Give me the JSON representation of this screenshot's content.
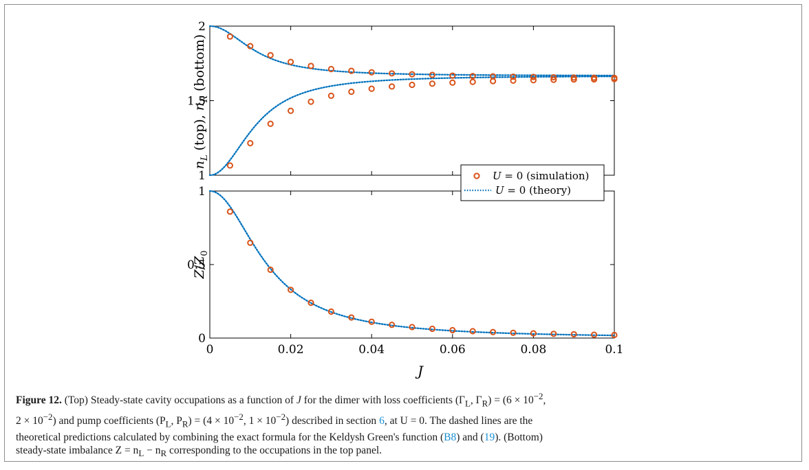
{
  "figure": {
    "number": "Figure 12.",
    "caption": {
      "p1": "(Top) Steady-state cavity occupations as a function of ",
      "var_J": "J",
      "p2": " for the dimer with loss coefficients (Γ",
      "sub_L": "L",
      "comma_gamma": ", Γ",
      "sub_R": "R",
      "p3": ") = (6 × 10",
      "exp_m2": "−2",
      "p4": ",",
      "p5": "2 × 10",
      "p6": ") and pump coefficients (P",
      "p7": ", P",
      "p8": ") = (4 × 10",
      "p9": ", 1 × 10",
      "p10": ") described in section ",
      "ref_section": "6",
      "p11": ", at U = 0. The dashed lines are the",
      "p12": "theoretical predictions calculated by combining the exact formula for the Keldysh Green's function (",
      "ref_b8": "B8",
      "p13": ") and (",
      "ref_19": "19",
      "p14": "). (Bottom)",
      "p15": "steady-state imbalance Z = n",
      "p16": " − n",
      "p17": " corresponding to the occupations in the top panel."
    }
  },
  "chart_data": [
    {
      "type": "scatter",
      "panel": "top",
      "ylabel": "n_L (top), n_R (bottom)",
      "xlim": [
        0,
        0.1
      ],
      "ylim": [
        1,
        2
      ],
      "yticks": [
        "1",
        "1.5",
        "2"
      ],
      "x": [
        0.005,
        0.01,
        0.015,
        0.02,
        0.025,
        0.03,
        0.035,
        0.04,
        0.045,
        0.05,
        0.055,
        0.06,
        0.065,
        0.07,
        0.075,
        0.08,
        0.085,
        0.09,
        0.095,
        0.1
      ],
      "series": [
        {
          "name": "U = 0 (simulation)",
          "kind": "markers",
          "y": [
            1.93,
            1.866,
            1.805,
            1.76,
            1.733,
            1.712,
            1.7,
            1.69,
            1.683,
            1.677,
            1.673,
            1.668,
            1.665,
            1.663,
            1.661,
            1.659,
            1.657,
            1.655,
            1.654,
            1.653
          ]
        },
        {
          "name": "U = 0 (simulation)",
          "kind": "markers",
          "y": [
            1.065,
            1.215,
            1.345,
            1.432,
            1.493,
            1.533,
            1.56,
            1.58,
            1.595,
            1.606,
            1.614,
            1.621,
            1.626,
            1.631,
            1.634,
            1.637,
            1.64,
            1.642,
            1.643,
            1.645
          ]
        },
        {
          "name": "U = 0 (theory)",
          "kind": "dotted-line",
          "function": "nL"
        },
        {
          "name": "U = 0 (theory)",
          "kind": "dotted-line",
          "function": "nR"
        }
      ],
      "legend": {
        "placement": "bottom-right",
        "entries": [
          "U = 0 (simulation)",
          "U = 0 (theory)"
        ]
      }
    },
    {
      "type": "scatter",
      "panel": "bottom",
      "ylabel": "Z/Z_0",
      "xlabel": "J",
      "xlim": [
        0,
        0.1
      ],
      "ylim": [
        0,
        1
      ],
      "xticks": [
        "0",
        "0.02",
        "0.04",
        "0.06",
        "0.08",
        "0.1"
      ],
      "yticks": [
        "0",
        "0.5",
        "1"
      ],
      "x": [
        0.005,
        0.01,
        0.015,
        0.02,
        0.025,
        0.03,
        0.035,
        0.04,
        0.045,
        0.05,
        0.055,
        0.06,
        0.065,
        0.07,
        0.075,
        0.08,
        0.085,
        0.09,
        0.095,
        0.1
      ],
      "series": [
        {
          "name": "U = 0 (simulation)",
          "kind": "markers",
          "y": [
            0.86,
            0.648,
            0.465,
            0.328,
            0.24,
            0.18,
            0.14,
            0.111,
            0.09,
            0.075,
            0.063,
            0.054,
            0.047,
            0.041,
            0.036,
            0.032,
            0.029,
            0.026,
            0.023,
            0.021
          ]
        },
        {
          "name": "U = 0 (theory)",
          "kind": "dotted-line",
          "function": "Z"
        }
      ]
    }
  ],
  "colors": {
    "markers": "#d95319",
    "theory": "#0072bd",
    "link": "#1a8fd1"
  }
}
